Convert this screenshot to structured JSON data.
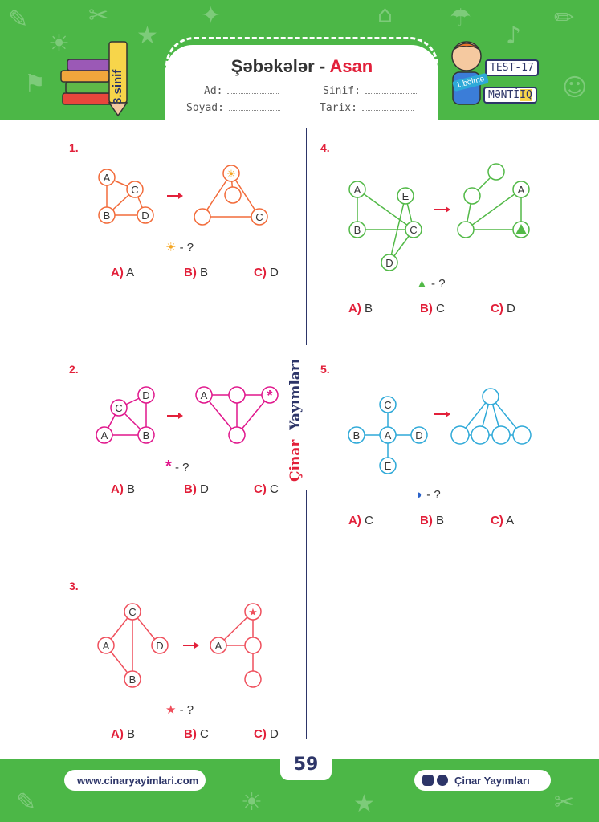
{
  "header": {
    "title_main": "Şəbəkələr - ",
    "title_accent": "Asan",
    "fields": [
      {
        "label": "Ad:"
      },
      {
        "label": "Sinif:"
      },
      {
        "label": "Soyad:"
      },
      {
        "label": "Tarix:"
      }
    ],
    "grade_label": "3.sinif",
    "test_label": "TEST-17",
    "section_label": "1.bölmə",
    "subject_label_part1": "MƏNTİ",
    "subject_label_part2": "IQ"
  },
  "brand_vertical": {
    "part1": "Çinar",
    "part2": "Yayımları"
  },
  "questions": [
    {
      "number": "1.",
      "ask": "- ?",
      "options": [
        {
          "letter": "A)",
          "text": "A"
        },
        {
          "letter": "B)",
          "text": "B"
        },
        {
          "letter": "C)",
          "text": "D"
        }
      ],
      "left_nodes": [
        "A",
        "C",
        "B",
        "D"
      ],
      "right_nodes": [
        "C"
      ],
      "color": "#f26b3a"
    },
    {
      "number": "2.",
      "ask": "- ?",
      "options": [
        {
          "letter": "A)",
          "text": "B"
        },
        {
          "letter": "B)",
          "text": "D"
        },
        {
          "letter": "C)",
          "text": "C"
        }
      ],
      "left_nodes": [
        "D",
        "C",
        "A",
        "B"
      ],
      "right_nodes": [
        "A"
      ],
      "color": "#e0168c"
    },
    {
      "number": "3.",
      "ask": "- ?",
      "options": [
        {
          "letter": "A)",
          "text": "B"
        },
        {
          "letter": "B)",
          "text": "C"
        },
        {
          "letter": "C)",
          "text": "D"
        }
      ],
      "left_nodes": [
        "C",
        "A",
        "D",
        "B"
      ],
      "right_nodes": [
        "A"
      ],
      "color": "#ef4f5c"
    },
    {
      "number": "4.",
      "ask": "- ?",
      "options": [
        {
          "letter": "A)",
          "text": "B"
        },
        {
          "letter": "B)",
          "text": "C"
        },
        {
          "letter": "C)",
          "text": "D"
        }
      ],
      "left_nodes": [
        "A",
        "E",
        "B",
        "C",
        "D"
      ],
      "right_nodes": [
        "A"
      ],
      "color": "#52b947"
    },
    {
      "number": "5.",
      "ask": "- ?",
      "options": [
        {
          "letter": "A)",
          "text": "C"
        },
        {
          "letter": "B)",
          "text": "B"
        },
        {
          "letter": "C)",
          "text": "A"
        }
      ],
      "left_nodes": [
        "C",
        "B",
        "A",
        "D",
        "E"
      ],
      "right_nodes": [],
      "color": "#2ea9d8"
    }
  ],
  "footer": {
    "page_number": "59",
    "website": "www.cinaryayimlari.com",
    "social": "Çinar Yayımları"
  }
}
